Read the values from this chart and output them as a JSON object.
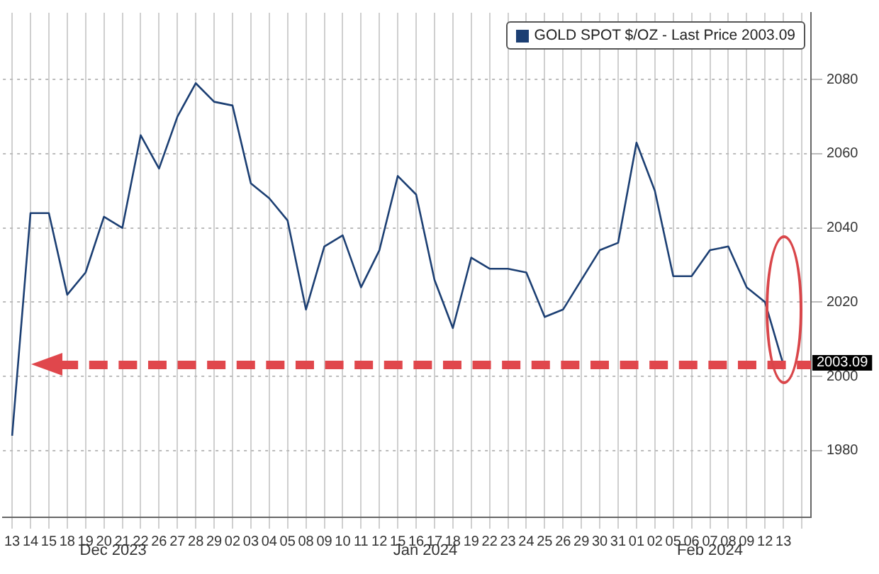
{
  "chart_data": {
    "type": "line",
    "legend": "top right",
    "grid": true,
    "marker": "none",
    "line_style": "solid",
    "ylim": [
      1962,
      2098
    ],
    "yticks": [
      1980,
      2000,
      2020,
      2040,
      2060,
      2080
    ],
    "categories": [
      "13",
      "14",
      "15",
      "18",
      "19",
      "20",
      "21",
      "22",
      "26",
      "27",
      "28",
      "29",
      "02",
      "03",
      "04",
      "05",
      "08",
      "09",
      "10",
      "11",
      "12",
      "15",
      "16",
      "17",
      "18",
      "19",
      "22",
      "23",
      "24",
      "25",
      "26",
      "29",
      "30",
      "31",
      "01",
      "02",
      "05",
      "06",
      "07",
      "08",
      "09",
      "12",
      "13",
      null
    ],
    "annotations": [
      "Dec 2023",
      "Jan 2024",
      "Feb 2024"
    ],
    "ref_lines": [
      {
        "axis": "y",
        "value": 2003.09,
        "label": "2003.09",
        "color": "#e0474c",
        "line_style": "dashed"
      }
    ],
    "series": [
      {
        "name": "GOLD SPOT $/OZ - Last Price 2003.09",
        "color": "#1c3f73",
        "values": [
          1984,
          2044,
          2044,
          2022,
          2028,
          2043,
          2040,
          2065,
          2056,
          2070,
          2079,
          2074,
          2073,
          2052,
          2048,
          2042,
          2018,
          2035,
          2038,
          2024,
          2034,
          2054,
          2049,
          2026,
          2013,
          2032,
          2029,
          2029,
          2028,
          2016,
          2018,
          2026,
          2034,
          2036,
          2063,
          2050,
          2027,
          2027,
          2034,
          2035,
          2024,
          2020,
          2003.09,
          null
        ]
      }
    ]
  }
}
